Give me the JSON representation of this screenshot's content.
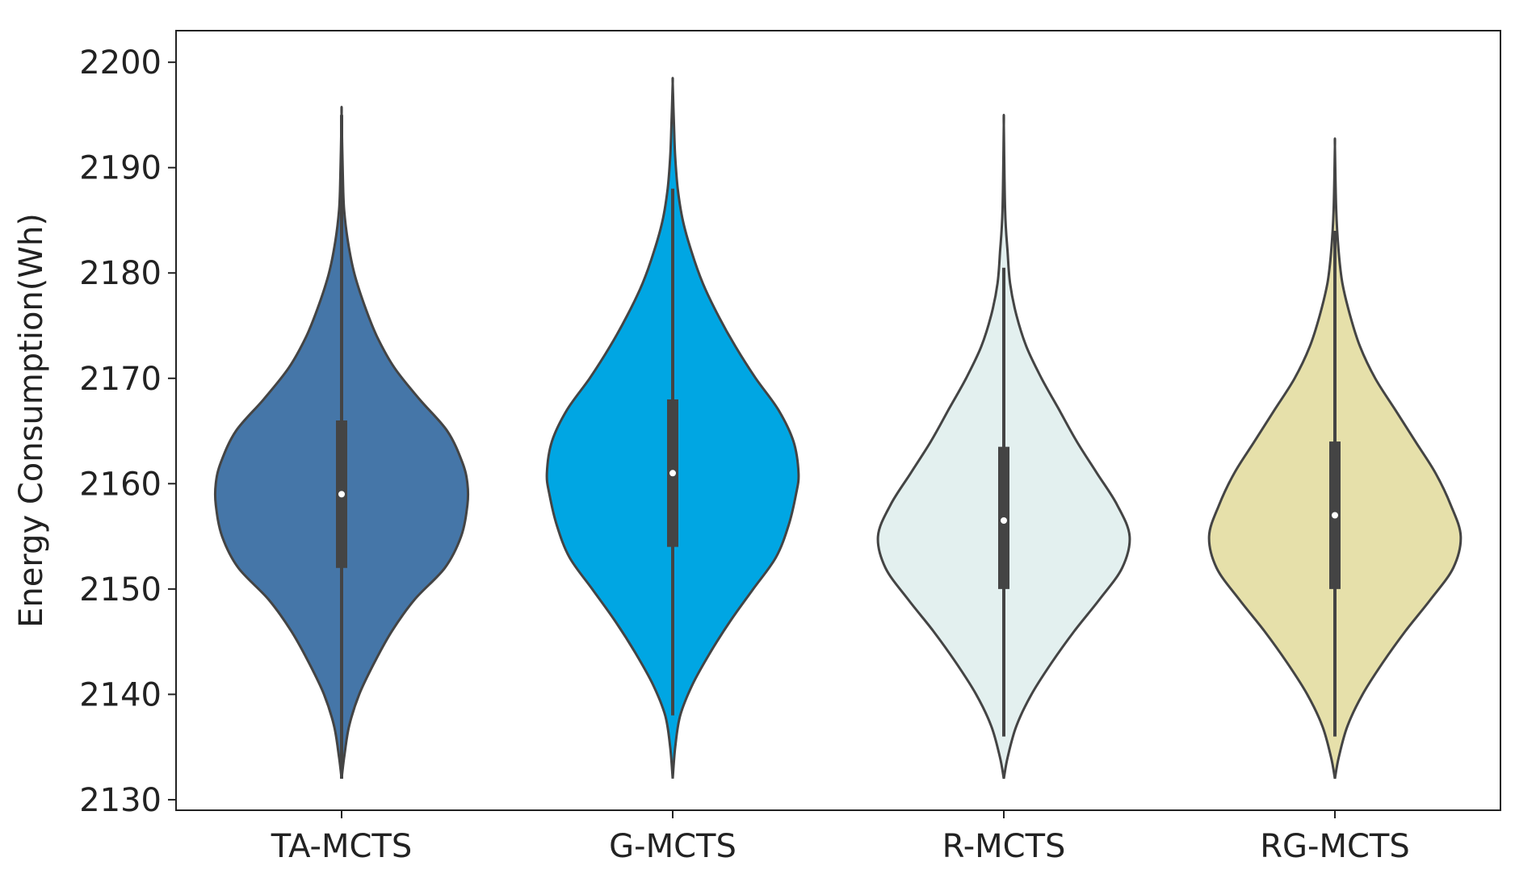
{
  "chart_data": {
    "type": "violin",
    "title": "",
    "xlabel": "",
    "ylabel": "Energy Consumption(Wh)",
    "ylim": [
      2129,
      2203
    ],
    "yticks": [
      2130,
      2140,
      2150,
      2160,
      2170,
      2180,
      2190,
      2200
    ],
    "grid": false,
    "legend": "none",
    "categories": [
      "TA-MCTS",
      "G-MCTS",
      "R-MCTS",
      "RG-MCTS"
    ],
    "series": [
      {
        "category": "TA-MCTS",
        "color": "#4576a8",
        "min": 2132,
        "max": 2195,
        "q1": 2152,
        "median": 2159,
        "q3": 2166,
        "whisker_low": 2132,
        "whisker_high": 2195,
        "density": [
          [
            2132,
            0.0
          ],
          [
            2134,
            0.02
          ],
          [
            2137,
            0.06
          ],
          [
            2140,
            0.14
          ],
          [
            2143,
            0.26
          ],
          [
            2146,
            0.4
          ],
          [
            2149,
            0.58
          ],
          [
            2152,
            0.82
          ],
          [
            2155,
            0.95
          ],
          [
            2158,
            1.0
          ],
          [
            2160,
            1.0
          ],
          [
            2162,
            0.96
          ],
          [
            2165,
            0.84
          ],
          [
            2168,
            0.62
          ],
          [
            2171,
            0.42
          ],
          [
            2174,
            0.28
          ],
          [
            2177,
            0.18
          ],
          [
            2180,
            0.1
          ],
          [
            2183,
            0.05
          ],
          [
            2186,
            0.02
          ],
          [
            2189,
            0.01
          ],
          [
            2195,
            0.0
          ]
        ]
      },
      {
        "category": "G-MCTS",
        "color": "#00a6e3",
        "min": 2132,
        "max": 2198,
        "q1": 2154,
        "median": 2161,
        "q3": 2168,
        "whisker_low": 2138,
        "whisker_high": 2188,
        "density": [
          [
            2132,
            0.0
          ],
          [
            2135,
            0.02
          ],
          [
            2138,
            0.06
          ],
          [
            2141,
            0.16
          ],
          [
            2144,
            0.3
          ],
          [
            2147,
            0.46
          ],
          [
            2150,
            0.64
          ],
          [
            2153,
            0.82
          ],
          [
            2156,
            0.92
          ],
          [
            2159,
            0.98
          ],
          [
            2161,
            1.0
          ],
          [
            2164,
            0.96
          ],
          [
            2167,
            0.84
          ],
          [
            2170,
            0.66
          ],
          [
            2173,
            0.5
          ],
          [
            2176,
            0.36
          ],
          [
            2179,
            0.24
          ],
          [
            2182,
            0.15
          ],
          [
            2185,
            0.08
          ],
          [
            2188,
            0.04
          ],
          [
            2191,
            0.02
          ],
          [
            2194,
            0.01
          ],
          [
            2198,
            0.0
          ]
        ]
      },
      {
        "category": "R-MCTS",
        "color": "#e3f0ef",
        "min": 2132,
        "max": 2194,
        "q1": 2150,
        "median": 2156.5,
        "q3": 2163.5,
        "whisker_low": 2136,
        "whisker_high": 2180.5,
        "density": [
          [
            2132,
            0.0
          ],
          [
            2134,
            0.03
          ],
          [
            2137,
            0.1
          ],
          [
            2140,
            0.22
          ],
          [
            2143,
            0.38
          ],
          [
            2146,
            0.56
          ],
          [
            2149,
            0.76
          ],
          [
            2152,
            0.94
          ],
          [
            2155,
            1.0
          ],
          [
            2158,
            0.9
          ],
          [
            2161,
            0.74
          ],
          [
            2164,
            0.58
          ],
          [
            2167,
            0.44
          ],
          [
            2170,
            0.3
          ],
          [
            2173,
            0.18
          ],
          [
            2176,
            0.1
          ],
          [
            2179,
            0.05
          ],
          [
            2182,
            0.03
          ],
          [
            2186,
            0.01
          ],
          [
            2194,
            0.0
          ]
        ]
      },
      {
        "category": "RG-MCTS",
        "color": "#e6e0aa",
        "min": 2132,
        "max": 2192,
        "q1": 2150,
        "median": 2157,
        "q3": 2164,
        "whisker_low": 2136,
        "whisker_high": 2184,
        "density": [
          [
            2132,
            0.0
          ],
          [
            2134,
            0.03
          ],
          [
            2137,
            0.1
          ],
          [
            2140,
            0.22
          ],
          [
            2143,
            0.38
          ],
          [
            2146,
            0.56
          ],
          [
            2149,
            0.76
          ],
          [
            2152,
            0.94
          ],
          [
            2155,
            1.0
          ],
          [
            2158,
            0.92
          ],
          [
            2161,
            0.8
          ],
          [
            2164,
            0.64
          ],
          [
            2167,
            0.48
          ],
          [
            2170,
            0.32
          ],
          [
            2173,
            0.2
          ],
          [
            2176,
            0.12
          ],
          [
            2179,
            0.06
          ],
          [
            2182,
            0.03
          ],
          [
            2186,
            0.01
          ],
          [
            2192,
            0.0
          ]
        ]
      }
    ]
  }
}
